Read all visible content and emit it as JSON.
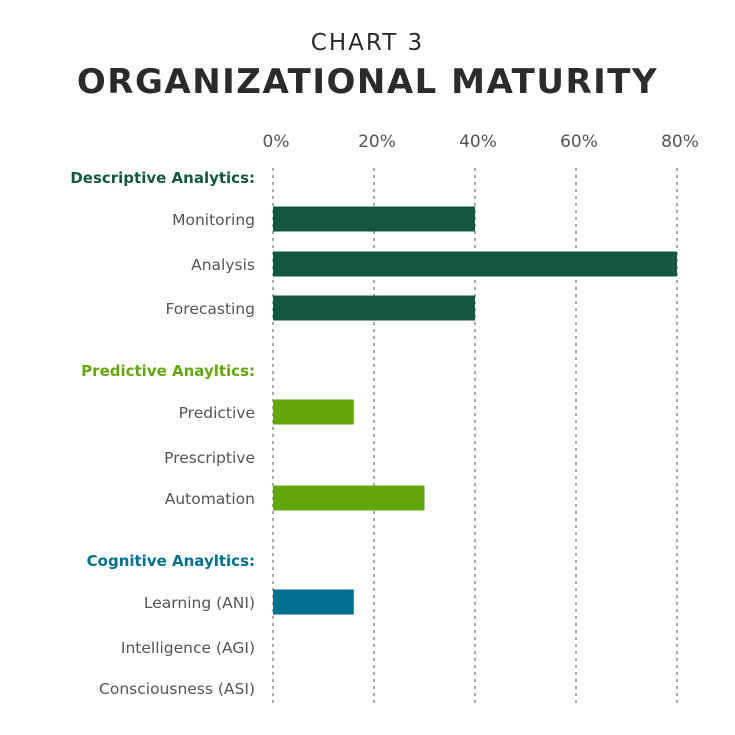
{
  "chart_data": {
    "type": "bar",
    "orientation": "horizontal",
    "subtitle": "CHART 3",
    "title": "ORGANIZATIONAL MATURITY",
    "xlim": [
      0,
      80
    ],
    "x_ticks": [
      "0%",
      "20%",
      "40%",
      "60%",
      "80%"
    ],
    "x_tick_values": [
      0,
      20,
      40,
      60,
      80
    ],
    "grid": true,
    "groups": [
      {
        "name": "Descriptive Analytics:",
        "color": "#125840",
        "categories": [
          "Monitoring",
          "Analysis",
          "Forecasting"
        ],
        "values": [
          40,
          80,
          40
        ]
      },
      {
        "name": "Predictive Anayltics:",
        "color": "#64a70b",
        "categories": [
          "Predictive",
          "Prescriptive",
          "Automation"
        ],
        "values": [
          16,
          0,
          30
        ]
      },
      {
        "name": "Cognitive Anayltics:",
        "color": "#00708f",
        "categories": [
          "Learning (ANI)",
          "Intelligence (AGI)",
          "Consciousness (ASI)"
        ],
        "values": [
          16,
          0,
          0
        ]
      }
    ]
  }
}
